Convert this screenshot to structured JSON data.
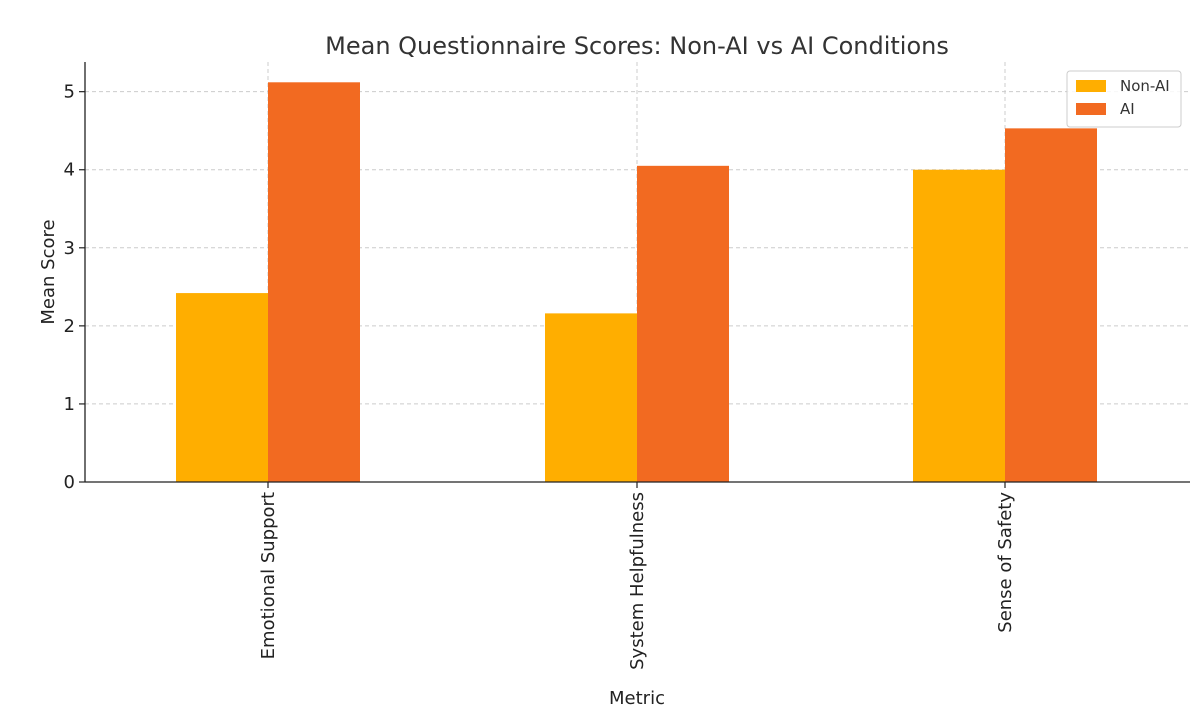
{
  "chart_data": {
    "type": "bar",
    "title": "Mean Questionnaire Scores: Non-AI vs AI Conditions",
    "xlabel": "Metric",
    "ylabel": "Mean Score",
    "categories": [
      "Emotional Support",
      "System Helpfulness",
      "Sense of Safety"
    ],
    "series": [
      {
        "name": "Non-AI",
        "color": "#FFAE00",
        "values": [
          2.42,
          2.16,
          4.0
        ]
      },
      {
        "name": "AI",
        "color": "#F26A21",
        "values": [
          5.12,
          4.05,
          4.53
        ]
      }
    ],
    "ylim": [
      0,
      5.38
    ],
    "yticks": [
      0,
      1,
      2,
      3,
      4,
      5
    ],
    "grid": true,
    "legend_position": "top-right"
  }
}
